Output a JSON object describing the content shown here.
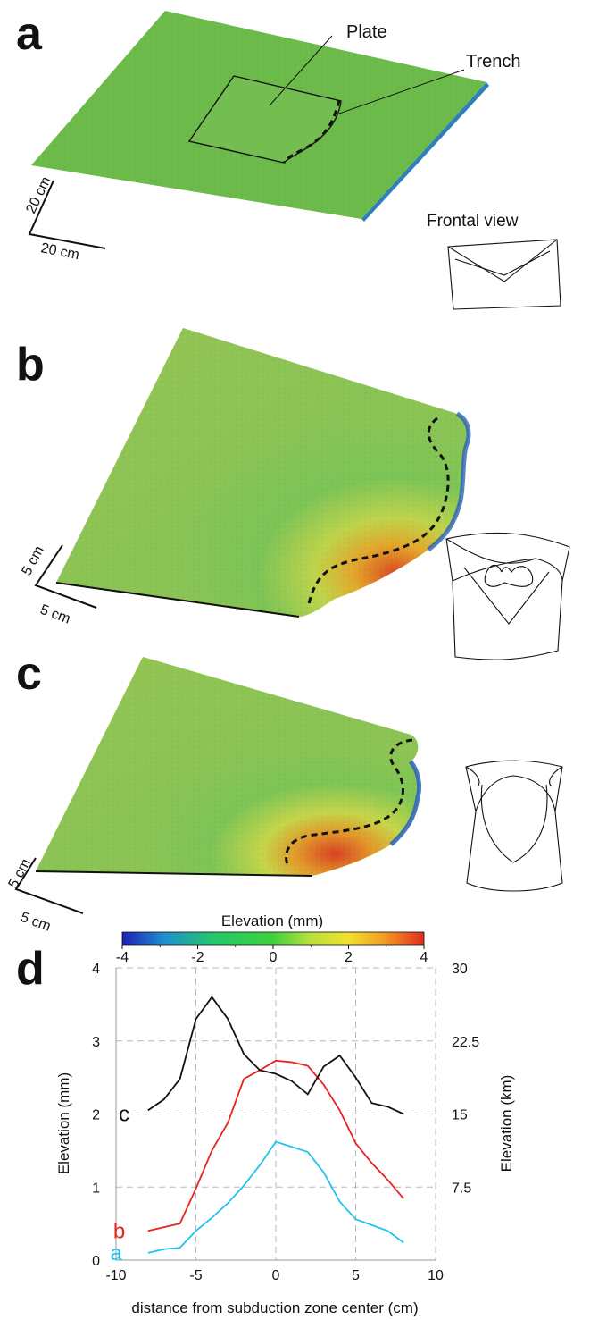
{
  "panels": {
    "a": {
      "letter": "a",
      "labels": {
        "plate": "Plate",
        "trench": "Trench"
      },
      "scale": {
        "vertical": "20 cm",
        "horizontal": "20 cm"
      },
      "frontal_view": "Frontal view"
    },
    "b": {
      "letter": "b",
      "scale": {
        "vertical": "5 cm",
        "horizontal": "5 cm"
      }
    },
    "c": {
      "letter": "c",
      "scale": {
        "vertical": "5 cm",
        "horizontal": "5 cm"
      }
    },
    "d": {
      "letter": "d"
    }
  },
  "colorbar": {
    "title": "Elevation (mm)",
    "ticks": [
      "-4",
      "-2",
      "0",
      "2",
      "4"
    ],
    "range": [
      -4,
      4
    ],
    "colors": [
      "#1f1fb8",
      "#1e8fd0",
      "#22c86a",
      "#3cd23c",
      "#b6e03a",
      "#f2e12a",
      "#f39a22",
      "#e42a1c"
    ]
  },
  "chart_data": {
    "type": "line",
    "xlabel": "distance from subduction zone center (cm)",
    "ylabel": "Elevation (mm)",
    "ylabel_right": "Elevation (km)",
    "xlim": [
      -10,
      10
    ],
    "ylim": [
      0,
      4
    ],
    "xticks": [
      -10,
      -5,
      0,
      5,
      10
    ],
    "yticks": [
      0,
      1,
      2,
      3,
      4
    ],
    "yticks_right": [
      "7.5",
      "15",
      "22.5",
      "30"
    ],
    "yticks_right_values": [
      1,
      2,
      3,
      4
    ],
    "grid": true,
    "series": [
      {
        "name": "a",
        "color": "#22c4ee",
        "x": [
          -8,
          -7,
          -6,
          -5,
          -4,
          -3,
          -2,
          -1,
          0,
          1,
          2,
          3,
          4,
          5,
          6,
          7,
          8
        ],
        "y": [
          0.1,
          0.15,
          0.17,
          0.4,
          0.58,
          0.78,
          1.02,
          1.3,
          1.62,
          1.55,
          1.48,
          1.2,
          0.8,
          0.56,
          0.48,
          0.4,
          0.24
        ],
        "label_x": -10.0,
        "label_y": 0.1
      },
      {
        "name": "b",
        "color": "#e8231c",
        "x": [
          -8,
          -6,
          -5,
          -4,
          -3,
          -2,
          -1,
          0,
          1,
          2,
          3,
          4,
          5,
          6,
          7,
          8
        ],
        "y": [
          0.4,
          0.5,
          0.98,
          1.5,
          1.88,
          2.48,
          2.6,
          2.73,
          2.71,
          2.66,
          2.4,
          2.05,
          1.6,
          1.33,
          1.1,
          0.84
        ],
        "label_x": -9.8,
        "label_y": 0.4
      },
      {
        "name": "c",
        "color": "#111111",
        "x": [
          -8,
          -7,
          -6,
          -5,
          -4,
          -3,
          -2,
          -1,
          0,
          1,
          2,
          3,
          4,
          5,
          6,
          7,
          8
        ],
        "y": [
          2.05,
          2.2,
          2.48,
          3.3,
          3.6,
          3.3,
          2.82,
          2.6,
          2.55,
          2.45,
          2.27,
          2.65,
          2.8,
          2.5,
          2.15,
          2.1,
          2.0
        ],
        "label_x": -9.5,
        "label_y": 2.0
      }
    ]
  }
}
